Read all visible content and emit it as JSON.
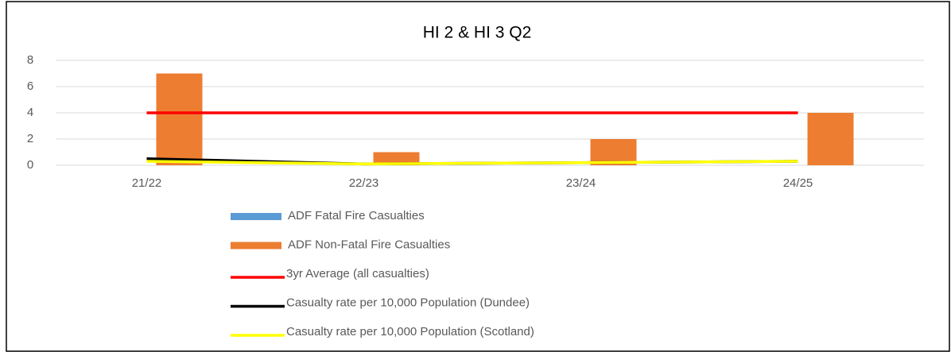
{
  "chart_data": {
    "type": "combo",
    "title": "HI 2 & HI 3  Q2",
    "categories": [
      "21/22",
      "22/23",
      "23/24",
      "24/25"
    ],
    "ylim": [
      0,
      8
    ],
    "yticks": [
      0,
      2,
      4,
      6,
      8
    ],
    "grid": true,
    "legend": "bottom",
    "series": [
      {
        "name": "ADF Fatal Fire Casualties",
        "type": "bar",
        "color": "#5b9bd5",
        "values": [
          0,
          0,
          0,
          0
        ]
      },
      {
        "name": "ADF Non-Fatal Fire Casualties",
        "type": "bar",
        "color": "#ed7d31",
        "values": [
          7,
          1,
          2,
          4
        ]
      },
      {
        "name": "3yr Average (all casualties)",
        "type": "line",
        "color": "#ff0000",
        "values": [
          4,
          4,
          4,
          4
        ]
      },
      {
        "name": "Casualty rate per 10,000 Population (Dundee)",
        "type": "line",
        "color": "#000000",
        "values": [
          0.5,
          0.1,
          0.2,
          0.3
        ]
      },
      {
        "name": "Casualty rate per 10,000 Population (Scotland)",
        "type": "line",
        "color": "#ffff00",
        "values": [
          0.3,
          0.1,
          0.2,
          0.3
        ]
      }
    ]
  }
}
